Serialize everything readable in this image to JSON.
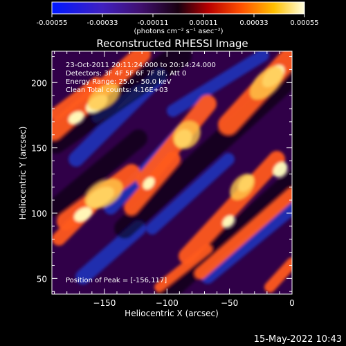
{
  "chart_data": {
    "type": "heatmap",
    "title": "Reconstructed RHESSI Image",
    "xlabel": "Heliocentric X (arcsec)",
    "ylabel": "Heliocentric Y (arcsec)",
    "xlim": [
      -192,
      0
    ],
    "ylim": [
      38,
      224
    ],
    "x_ticks": [
      -150,
      -100,
      -50,
      0
    ],
    "y_ticks": [
      50,
      100,
      150,
      200
    ],
    "colorbar": {
      "ticks": [
        "-0.00055",
        "-0.00033",
        "-0.00011",
        "0.00011",
        "0.00033",
        "0.00055"
      ],
      "min": -0.00055,
      "max": 0.00055,
      "unit_label": "(photons cm⁻² s⁻¹ asec⁻²)"
    },
    "annotations": [
      "23-Oct-2011 20:11:24.000 to 20:14:24.000",
      "Detectors: 3F 4F 5F 6F 7F 8F, Att 0",
      "Energy Range: 25.0 - 50.0 keV",
      "Clean     Total counts: 4.16E+03",
      "Position of Peak = [-156,117]"
    ],
    "peak_position": [
      -156,
      117
    ],
    "timestamp": "15-May-2022 10:43",
    "colors": {
      "background": "#000000",
      "text": "#ffffff",
      "negative": "#1e3fd0",
      "zero": "#300048",
      "positive": "#ff5a1e",
      "max": "#ffffc0"
    }
  }
}
